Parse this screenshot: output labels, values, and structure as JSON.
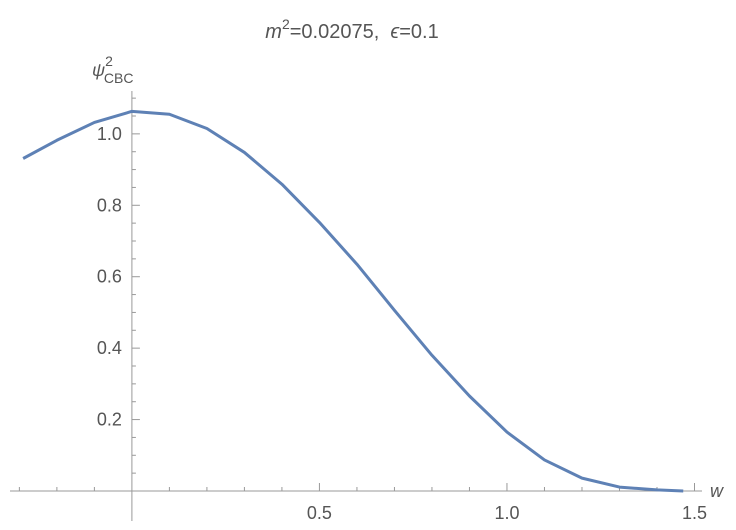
{
  "chart_data": {
    "type": "line",
    "title_parts": [
      "m",
      "2",
      "=0.02075,  ",
      "ϵ",
      "=0.1"
    ],
    "y_label_parts": [
      "ψ",
      "2",
      "CBC"
    ],
    "x_label": "w",
    "x": [
      -0.29,
      -0.2,
      -0.1,
      0,
      0.1,
      0.2,
      0.3,
      0.4,
      0.5,
      0.6,
      0.7,
      0.8,
      0.9,
      1.0,
      1.1,
      1.2,
      1.3,
      1.4,
      1.47
    ],
    "series": [
      {
        "color": "#5e81b5",
        "values": [
          0.931,
          0.982,
          1.032,
          1.063,
          1.055,
          1.015,
          0.948,
          0.859,
          0.752,
          0.635,
          0.506,
          0.38,
          0.266,
          0.165,
          0.087,
          0.036,
          0.011,
          0.003,
          0.0
        ]
      }
    ],
    "xlim": [
      -0.325,
      1.52
    ],
    "ylim": [
      0,
      1.12
    ],
    "xticks": [
      0.5,
      {
        "value": 1,
        "label": "1.0"
      },
      1.5
    ],
    "yticks": [
      0.2,
      0.4,
      0.6,
      0.8,
      {
        "value": 1,
        "label": "1.0"
      }
    ],
    "xminorticks": [
      -0.3,
      -0.2,
      -0.1,
      0.1,
      0.2,
      0.3,
      0.4,
      0.6,
      0.7,
      0.8,
      0.9,
      1.1,
      1.2,
      1.3,
      1.4
    ],
    "yminorticks": [
      0.05,
      0.1,
      0.15,
      0.25,
      0.3,
      0.35,
      0.45,
      0.5,
      0.55,
      0.65,
      0.7,
      0.75,
      0.85,
      0.9,
      0.95,
      1.05,
      1.1
    ]
  }
}
